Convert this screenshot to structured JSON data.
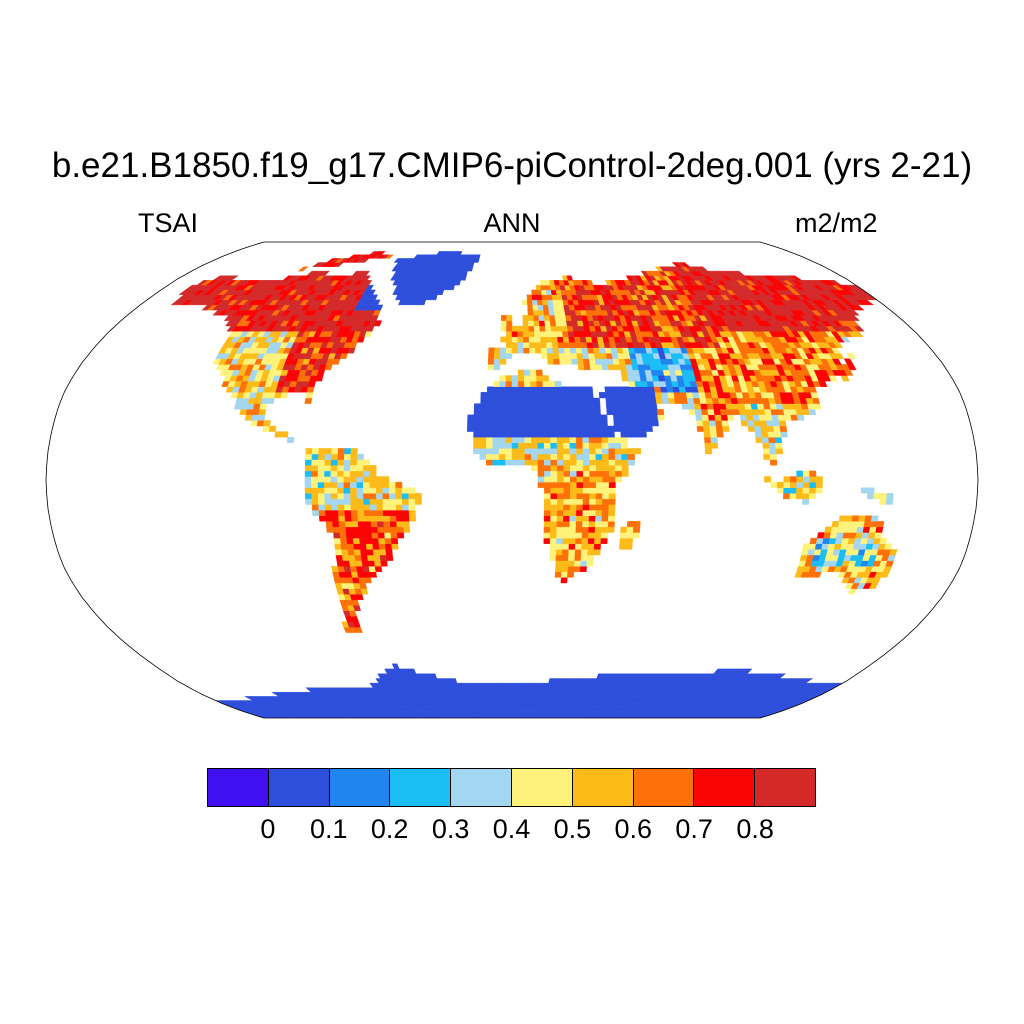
{
  "title": "b.e21.B1850.f19_g17.CMIP6-piControl-2deg.001 (yrs 2-21)",
  "left_label": "TSAI",
  "center_label": "ANN",
  "right_label": "m2/m2",
  "map": {
    "projection": "Robinson",
    "variable": "TSAI",
    "period": "ANN",
    "units": "m2/m2",
    "levels": [
      0,
      0.1,
      0.2,
      0.3,
      0.4,
      0.5,
      0.6,
      0.7,
      0.8
    ],
    "colors": [
      "#4010f0",
      "#2e4fdc",
      "#2185f0",
      "#1bbdf5",
      "#a3d6f0",
      "#fff27a",
      "#fdbb1a",
      "#fe7108",
      "#fb0404",
      "#d42a2a"
    ],
    "regions": [
      {
        "name": "Antarctica",
        "value": 0.05
      },
      {
        "name": "Greenland",
        "value": 0.05
      },
      {
        "name": "Sahara and Arabia",
        "value": 0.05
      },
      {
        "name": "Central Asian deserts",
        "value": 0.25
      },
      {
        "name": "Australian interior",
        "value": 0.35
      },
      {
        "name": "Siberia",
        "value": 0.85
      },
      {
        "name": "Canada and Alaska",
        "value": 0.85
      },
      {
        "name": "Eastern Europe",
        "value": 0.75
      },
      {
        "name": "Eastern United States",
        "value": 0.75
      },
      {
        "name": "Sahel",
        "value": 0.45
      },
      {
        "name": "Southern Africa",
        "value": 0.55
      },
      {
        "name": "Amazonia",
        "value": 0.45
      },
      {
        "name": "Southern Brazil",
        "value": 0.65
      },
      {
        "name": "Indonesia and Southeast Asia",
        "value": 0.45
      },
      {
        "name": "Northern Europe",
        "value": 0.55
      }
    ]
  },
  "colorbar": {
    "tick_labels": [
      "0",
      "0.1",
      "0.2",
      "0.3",
      "0.4",
      "0.5",
      "0.6",
      "0.7",
      "0.8"
    ]
  }
}
